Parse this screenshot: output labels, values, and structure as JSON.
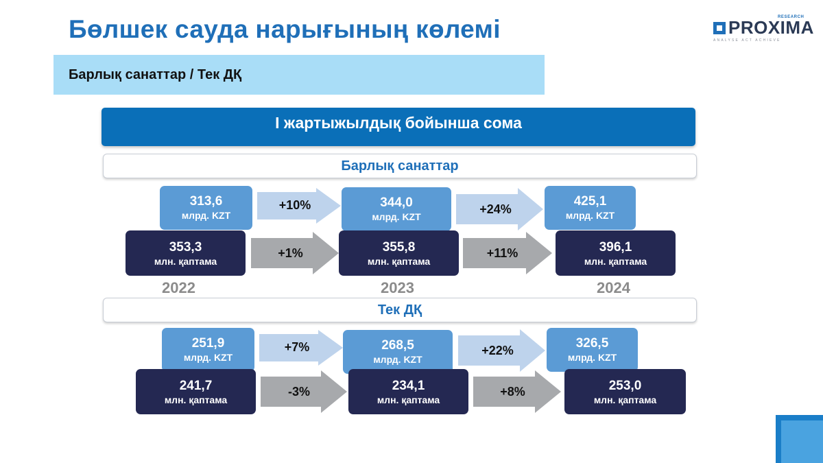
{
  "header": {
    "title": "Бөлшек сауда нарығының көлемі",
    "subtitle": "Барлық санаттар / Тек ДҚ"
  },
  "logo": {
    "name": "PROXIMA",
    "research": "RESEARCH",
    "tagline": "ANALYSE ACT ACHIEVE"
  },
  "banner": "I жартыжылдық бойынша сома",
  "sections": [
    {
      "label": "Барлық санаттар",
      "value_row": [
        {
          "value": "313,6",
          "unit": "млрд. KZT"
        },
        {
          "value": "344,0",
          "unit": "млрд. KZT"
        },
        {
          "value": "425,1",
          "unit": "млрд. KZT"
        }
      ],
      "value_changes": [
        "+10%",
        "+24%"
      ],
      "pack_row": [
        {
          "value": "353,3",
          "unit": "млн. қаптама"
        },
        {
          "value": "355,8",
          "unit": "млн. қаптама"
        },
        {
          "value": "396,1",
          "unit": "млн. қаптама"
        }
      ],
      "pack_changes": [
        "+1%",
        "+11%"
      ]
    },
    {
      "label": "Тек ДҚ",
      "value_row": [
        {
          "value": "251,9",
          "unit": "млрд. KZT"
        },
        {
          "value": "268,5",
          "unit": "млрд. KZT"
        },
        {
          "value": "326,5",
          "unit": "млрд. KZT"
        }
      ],
      "value_changes": [
        "+7%",
        "+22%"
      ],
      "pack_row": [
        {
          "value": "241,7",
          "unit": "млн. қаптама"
        },
        {
          "value": "234,1",
          "unit": "млн. қаптама"
        },
        {
          "value": "253,0",
          "unit": "млн. қаптама"
        }
      ],
      "pack_changes": [
        "-3%",
        "+8%"
      ]
    }
  ],
  "years": [
    "2022",
    "2023",
    "2024"
  ],
  "colors": {
    "title": "#1f6fb8",
    "subtitle_bg": "#a9ddf7",
    "banner_bg": "#0a6fb8",
    "value_box": "#5b9bd5",
    "pack_box": "#242852",
    "value_arrow": "#bed3ec",
    "pack_arrow": "#a7a9ac",
    "year_text": "#8b8b8b"
  }
}
